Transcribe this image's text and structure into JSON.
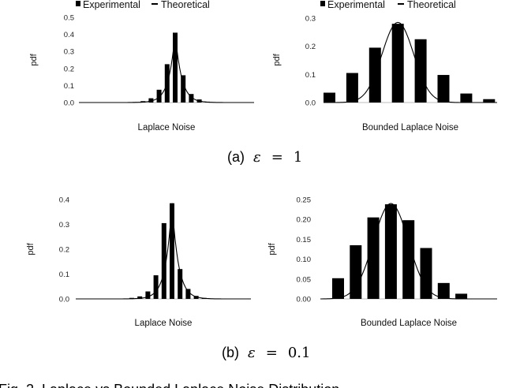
{
  "legend": {
    "experimental": "Experimental",
    "theoretical": "Theoretical"
  },
  "subcaptions": [
    {
      "prefix": "(a)",
      "symbol": "ε",
      "equals": "=",
      "value": "1"
    },
    {
      "prefix": "(b)",
      "symbol": "ε",
      "equals": "=",
      "value": "0.1"
    }
  ],
  "figure_caption": "Fig. 2. Laplace vs Bounded Laplace Noise Distribution",
  "chart_data": [
    {
      "type": "bar",
      "panel": "a-left",
      "xlabel": "Laplace Noise",
      "ylabel": "pdf",
      "ylim": [
        0,
        0.5
      ],
      "yticks": [
        "0.0",
        "0.1",
        "0.2",
        "0.3",
        "0.4",
        "0.5"
      ],
      "legend_position": "top",
      "series": [
        {
          "name": "Experimental",
          "values": [
            0.003,
            0.008,
            0.025,
            0.075,
            0.225,
            0.41,
            0.16,
            0.05,
            0.018,
            0.005
          ]
        }
      ],
      "theoretical_peak": 0.41
    },
    {
      "type": "bar",
      "panel": "a-right",
      "xlabel": "Bounded Laplace Noise",
      "ylabel": "pdf",
      "ylim": [
        0,
        0.3
      ],
      "yticks": [
        "0.0",
        "0.1",
        "0.2",
        "0.3"
      ],
      "legend_position": "top",
      "series": [
        {
          "name": "Experimental",
          "values": [
            0.035,
            0.105,
            0.195,
            0.28,
            0.225,
            0.098,
            0.032,
            0.012
          ]
        }
      ],
      "theoretical_peak": 0.285
    },
    {
      "type": "bar",
      "panel": "b-left",
      "xlabel": "Laplace Noise",
      "ylabel": "pdf",
      "ylim": [
        0,
        0.4
      ],
      "yticks": [
        "0.0",
        "0.1",
        "0.2",
        "0.3",
        "0.4"
      ],
      "series": [
        {
          "name": "Experimental",
          "values": [
            0.004,
            0.01,
            0.03,
            0.095,
            0.305,
            0.385,
            0.12,
            0.04,
            0.012,
            0.004
          ]
        }
      ],
      "theoretical_peak": 0.39
    },
    {
      "type": "bar",
      "panel": "b-right",
      "xlabel": "Bounded Laplace Noise",
      "ylabel": "pdf",
      "ylim": [
        0,
        0.25
      ],
      "yticks": [
        "0.00",
        "0.05",
        "0.10",
        "0.15",
        "0.20",
        "0.25"
      ],
      "series": [
        {
          "name": "Experimental",
          "values": [
            0.052,
            0.135,
            0.205,
            0.238,
            0.198,
            0.128,
            0.04,
            0.013
          ]
        }
      ],
      "theoretical_peak": 0.24
    }
  ]
}
